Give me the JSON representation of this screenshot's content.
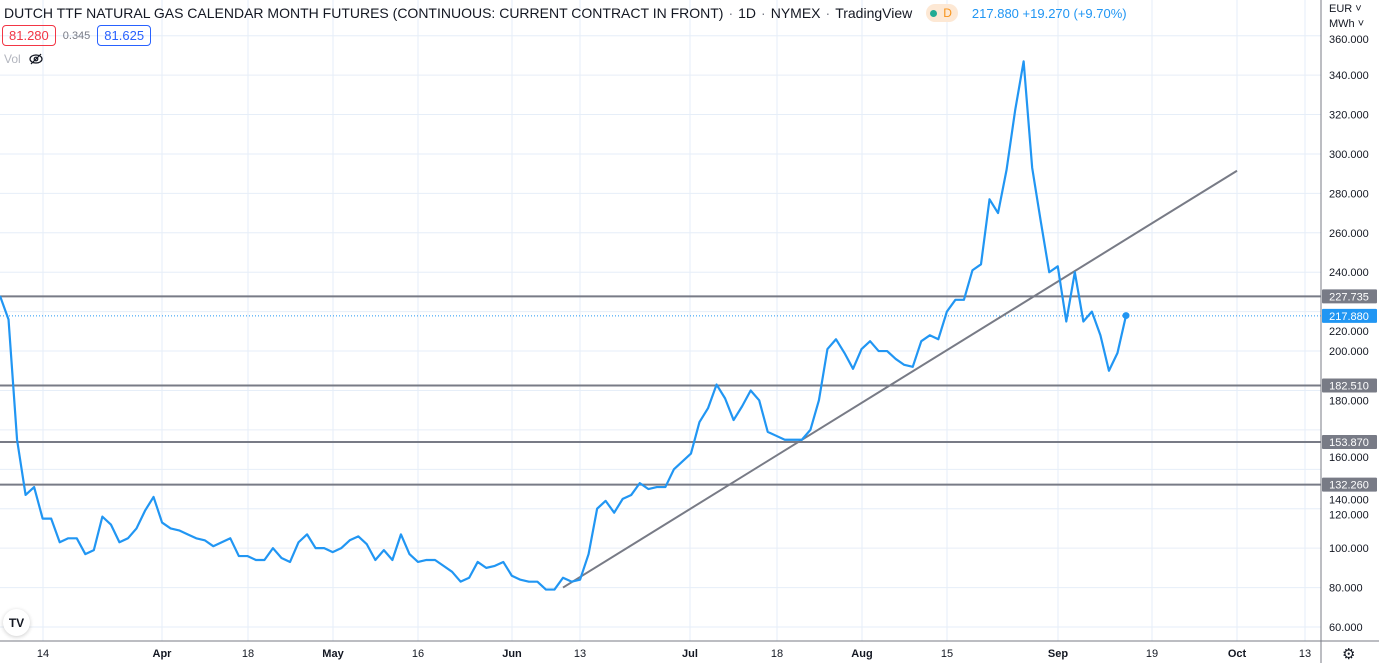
{
  "header": {
    "symbol_title": "DUTCH TTF NATURAL GAS CALENDAR MONTH FUTURES (CONTINUOUS: CURRENT CONTRACT IN FRONT)",
    "interval": "1D",
    "exchange": "NYMEX",
    "source": "TradingView",
    "status_letter": "D",
    "last_price": "217.880",
    "change": "+19.270",
    "change_pct": "(+9.70%)"
  },
  "quote": {
    "bid": "81.280",
    "spread": "0.345",
    "ask": "81.625"
  },
  "volume": {
    "label": "Vol",
    "icon": "eye-crossed-icon"
  },
  "price_axis": {
    "currency": "EUR ˅",
    "unit": "MWh ˅"
  },
  "colors": {
    "line": "#2196f3",
    "levels": "#787b86",
    "grid": "#e6eef8",
    "bid": "#f23645",
    "ask": "#2962ff"
  },
  "chart_data": {
    "type": "line",
    "x_tick_labels": [
      "14",
      "Apr",
      "18",
      "May",
      "16",
      "Jun",
      "13",
      "Jul",
      "18",
      "Aug",
      "15",
      "Sep",
      "19",
      "Oct",
      "13"
    ],
    "y_tick_labels": [
      "60.000",
      "80.000",
      "100.000",
      "120.000",
      "140.000",
      "160.000",
      "180.000",
      "200.000",
      "220.000",
      "240.000",
      "260.000",
      "280.000",
      "300.000",
      "320.000",
      "340.000",
      "360.000"
    ],
    "ylim": [
      55,
      362
    ],
    "grid": true,
    "series": [
      {
        "values": [
          228,
          216,
          155,
          127,
          131,
          115,
          115,
          103,
          105,
          105,
          97,
          99,
          116,
          112,
          103,
          105,
          110,
          119,
          126,
          113,
          110,
          109,
          107,
          105,
          104,
          101,
          103,
          105,
          96,
          96,
          94,
          94,
          100,
          95,
          93,
          103,
          107,
          100,
          100,
          98,
          100,
          104,
          106,
          102,
          94,
          99,
          94,
          107,
          97,
          93,
          94,
          94,
          91,
          88,
          83,
          85,
          93,
          90,
          91,
          93,
          86,
          84,
          83,
          83,
          79,
          79,
          85,
          83,
          84,
          97,
          120,
          124,
          118,
          125,
          127,
          133,
          130,
          131,
          131,
          140,
          144,
          148,
          164,
          171,
          183,
          176,
          165,
          172,
          180,
          175,
          159,
          157,
          155,
          155,
          155,
          160,
          175,
          201,
          206,
          199,
          191,
          201,
          205,
          200,
          200,
          196,
          193,
          192,
          205,
          208,
          206,
          220,
          226,
          226,
          241,
          244,
          277,
          270,
          292,
          322,
          347,
          293,
          266,
          240,
          243,
          215,
          240,
          215,
          220,
          208,
          190,
          199,
          218
        ]
      }
    ],
    "levels": [
      {
        "value": 227.735,
        "label": "227.735"
      },
      {
        "value": 182.51,
        "label": "182.510"
      },
      {
        "value": 153.87,
        "label": "153.870"
      },
      {
        "value": 132.26,
        "label": "132.260"
      }
    ],
    "last_price_line": {
      "value": 217.88,
      "label": "217.880"
    },
    "trend_line": {
      "from": {
        "date": "Jun 10",
        "value": 80
      },
      "to": {
        "date": "Oct 1",
        "value": 291.5
      }
    }
  }
}
